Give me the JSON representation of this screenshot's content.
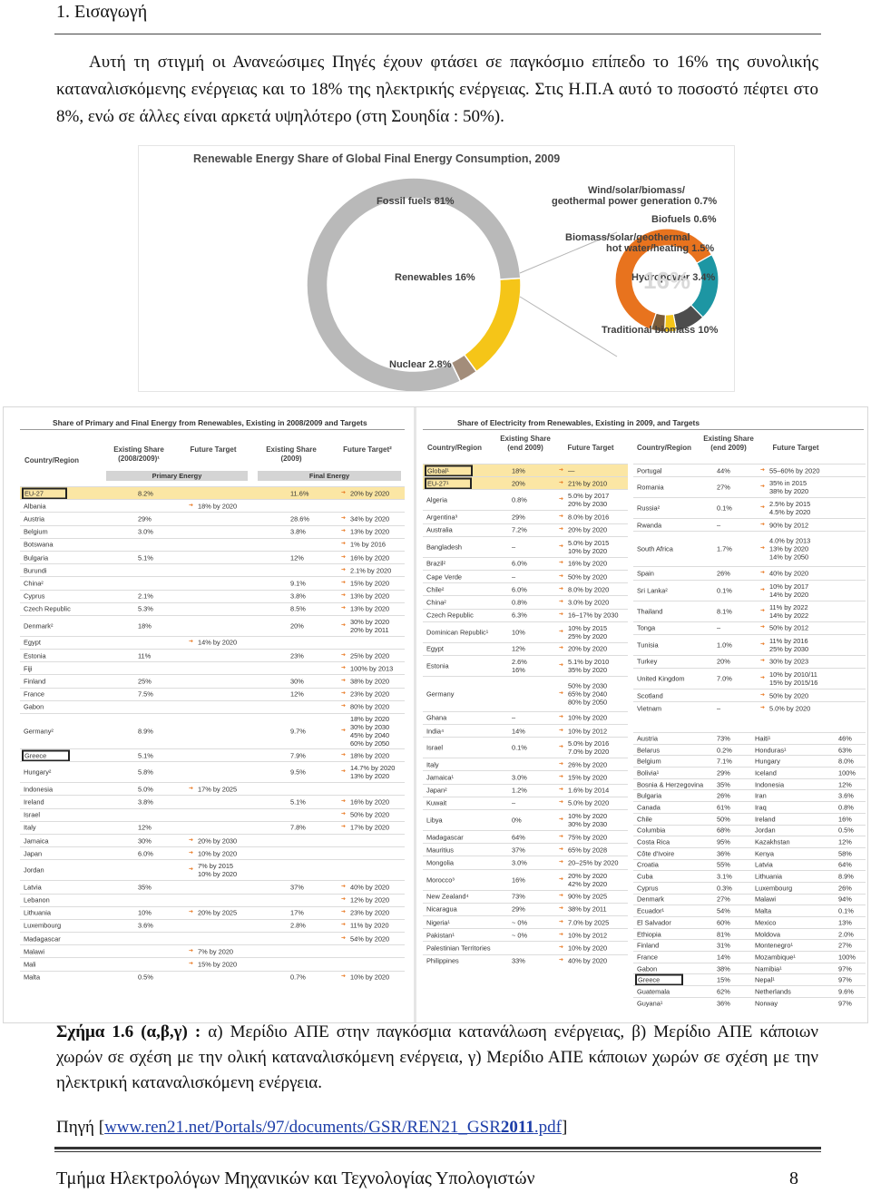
{
  "header": {
    "title": "1. Εισαγωγή"
  },
  "intro": "Αυτή τη στιγμή οι Ανανεώσιμες Πηγές έχουν φτάσει σε παγκόσμιο επίπεδο το 16% της συνολικής καταναλισκόμενης ενέργειας και το 18% της ηλεκτρικής ενέργειας. Στις Η.Π.Α αυτό το ποσοστό πέφτει στο 8%, ενώ σε άλλες είναι αρκετά υψηλότερο (στη Σουηδία : 50%).",
  "chart_data": {
    "type": "pie",
    "title": "Renewable Energy Share of Global Final Energy Consumption, 2009",
    "center_label": "16%",
    "outer_ring": [
      {
        "label": "Fossil fuels",
        "value": 81,
        "value_label": "81%",
        "color": "#b9b9b9"
      },
      {
        "label": "Renewables",
        "value": 16,
        "value_label": "16%",
        "color": "#f5c518"
      },
      {
        "label": "Nuclear",
        "value": 2.8,
        "value_label": "2.8%",
        "color": "#a38d7a"
      }
    ],
    "inner_ring": [
      {
        "label": "Traditional biomass",
        "value": 10,
        "value_label": "10%",
        "color": "#e8731e"
      },
      {
        "label": "Hydropower",
        "value": 3.4,
        "value_label": "3.4%",
        "color": "#1d96a3"
      },
      {
        "label": "Biomass/solar/geothermal hot water/heating",
        "value": 1.5,
        "value_label": "1.5%",
        "color": "#4d4d4d"
      },
      {
        "label": "Biofuels",
        "value": 0.6,
        "value_label": "0.6%",
        "color": "#f5c518"
      },
      {
        "label": "Wind/solar/biomass/ geothermal power generation",
        "value": 0.7,
        "value_label": "0.7%",
        "color": "#7a5c3a"
      }
    ]
  },
  "tables": {
    "primary": {
      "title": "Share of Primary and Final Energy from Renewables, Existing in 2008/2009 and Targets",
      "col_region": "Country/Region",
      "col_exist_primary": "Existing Share (2008/2009)¹",
      "col_future_primary": "Future Target",
      "col_exist_final": "Existing Share (2009)",
      "col_future_final": "Future Target²",
      "sub_primary": "Primary Energy",
      "sub_final": "Final Energy",
      "rows": [
        {
          "name": "EU-27",
          "p1": "8.2%",
          "p2": "",
          "f1": "11.6%",
          "f2": "20% by 2020",
          "hl": true,
          "boxed": true
        },
        {
          "name": "Albania",
          "p1": "",
          "p2": "18% by 2020",
          "f1": "",
          "f2": ""
        },
        {
          "name": "Austria",
          "p1": "29%",
          "p2": "",
          "f1": "28.6%",
          "f2": "34% by 2020"
        },
        {
          "name": "Belgium",
          "p1": "3.0%",
          "p2": "",
          "f1": "3.8%",
          "f2": "13% by 2020"
        },
        {
          "name": "Botswana",
          "p1": "",
          "p2": "",
          "f1": "",
          "f2": "1% by 2016"
        },
        {
          "name": "Bulgaria",
          "p1": "5.1%",
          "p2": "",
          "f1": "12%",
          "f2": "16% by 2020"
        },
        {
          "name": "Burundi",
          "p1": "",
          "p2": "",
          "f1": "",
          "f2": "2.1% by 2020"
        },
        {
          "name": "China²",
          "p1": "",
          "p2": "",
          "f1": "9.1%",
          "f2": "15% by 2020"
        },
        {
          "name": "Cyprus",
          "p1": "2.1%",
          "p2": "",
          "f1": "3.8%",
          "f2": "13% by 2020"
        },
        {
          "name": "Czech Republic",
          "p1": "5.3%",
          "p2": "",
          "f1": "8.5%",
          "f2": "13% by 2020"
        },
        {
          "name": "Denmark²",
          "p1": "18%",
          "p2": "",
          "f1": "20%",
          "f2": "30% by 2020 / 20% by 2011",
          "tall": true
        },
        {
          "name": "Egypt",
          "p1": "",
          "p2": "14% by 2020",
          "f1": "",
          "f2": ""
        },
        {
          "name": "Estonia",
          "p1": "11%",
          "p2": "",
          "f1": "23%",
          "f2": "25% by 2020"
        },
        {
          "name": "Fiji",
          "p1": "",
          "p2": "",
          "f1": "",
          "f2": "100% by 2013"
        },
        {
          "name": "Finland",
          "p1": "25%",
          "p2": "",
          "f1": "30%",
          "f2": "38% by 2020"
        },
        {
          "name": "France",
          "p1": "7.5%",
          "p2": "",
          "f1": "12%",
          "f2": "23% by 2020"
        },
        {
          "name": "Gabon",
          "p1": "",
          "p2": "",
          "f1": "",
          "f2": "80% by 2020"
        },
        {
          "name": "Germany²",
          "p1": "8.9%",
          "p2": "",
          "f1": "9.7%",
          "f2": "18% by 2020 / 30% by 2030 / 45% by 2040 / 60% by 2050",
          "xtall": true
        },
        {
          "name": "Greece",
          "p1": "5.1%",
          "p2": "",
          "f1": "7.9%",
          "f2": "18% by 2020",
          "boxed": true
        },
        {
          "name": "Hungary²",
          "p1": "5.8%",
          "p2": "",
          "f1": "9.5%",
          "f2": "14.7% by 2020 / 13% by 2020",
          "tall": true
        },
        {
          "name": "Indonesia",
          "p1": "5.0%",
          "p2": "17% by 2025",
          "f1": "",
          "f2": ""
        },
        {
          "name": "Ireland",
          "p1": "3.8%",
          "p2": "",
          "f1": "5.1%",
          "f2": "16% by 2020"
        },
        {
          "name": "Israel",
          "p1": "",
          "p2": "",
          "f1": "",
          "f2": "50% by 2020"
        },
        {
          "name": "Italy",
          "p1": "12%",
          "p2": "",
          "f1": "7.8%",
          "f2": "17% by 2020"
        },
        {
          "name": "Jamaica",
          "p1": "30%",
          "p2": "20% by 2030",
          "f1": "",
          "f2": ""
        },
        {
          "name": "Japan",
          "p1": "6.0%",
          "p2": "10% by 2020",
          "f1": "",
          "f2": ""
        },
        {
          "name": "Jordan",
          "p1": "",
          "p2": "7% by 2015 / 10% by 2020",
          "f1": "",
          "f2": "",
          "tall": true
        },
        {
          "name": "Latvia",
          "p1": "35%",
          "p2": "",
          "f1": "37%",
          "f2": "40% by 2020"
        },
        {
          "name": "Lebanon",
          "p1": "",
          "p2": "",
          "f1": "",
          "f2": "12% by 2020"
        },
        {
          "name": "Lithuania",
          "p1": "10%",
          "p2": "20% by 2025",
          "f1": "17%",
          "f2": "23% by 2020"
        },
        {
          "name": "Luxembourg",
          "p1": "3.6%",
          "p2": "",
          "f1": "2.8%",
          "f2": "11% by 2020"
        },
        {
          "name": "Madagascar",
          "p1": "",
          "p2": "",
          "f1": "",
          "f2": "54% by 2020"
        },
        {
          "name": "Malawi",
          "p1": "",
          "p2": "7% by 2020",
          "f1": "",
          "f2": ""
        },
        {
          "name": "Mali",
          "p1": "",
          "p2": "15% by 2020",
          "f1": "",
          "f2": ""
        },
        {
          "name": "Malta",
          "p1": "0.5%",
          "p2": "",
          "f1": "0.7%",
          "f2": "10% by 2020"
        }
      ]
    },
    "electricity": {
      "title": "Share of Electricity from Renewables, Existing in 2009, and Targets",
      "col_region": "Country/Region",
      "col_exist": "Existing Share (end 2009)",
      "col_future": "Future Target",
      "left_rows": [
        {
          "name": "Global¹",
          "e": "18%",
          "t": "—",
          "hl": true,
          "boxed": true
        },
        {
          "name": "EU-27¹",
          "e": "20%",
          "t": "21% by 2010",
          "hl": true,
          "boxed": true
        },
        {
          "name": "Algeria",
          "e": "0.8%",
          "t": "5.0% by 2017 / 20% by 2030",
          "tall": true
        },
        {
          "name": "Argentina³",
          "e": "29%",
          "t": "8.0% by 2016"
        },
        {
          "name": "Australia",
          "e": "7.2%",
          "t": "20% by 2020"
        },
        {
          "name": "Bangladesh",
          "e": "–",
          "t": "5.0% by 2015 / 10% by 2020",
          "tall": true
        },
        {
          "name": "Brazil²",
          "e": "6.0%",
          "t": "16% by 2020"
        },
        {
          "name": "Cape Verde",
          "e": "–",
          "t": "50% by 2020"
        },
        {
          "name": "Chile²",
          "e": "6.0%",
          "t": "8.0% by 2020"
        },
        {
          "name": "China²",
          "e": "0.8%",
          "t": "3.0% by 2020"
        },
        {
          "name": "Czech Republic",
          "e": "6.3%",
          "t": "16–17% by 2030"
        },
        {
          "name": "Dominican Republic¹",
          "e": "10%",
          "t": "10% by 2015 / 25% by 2020",
          "tall": true
        },
        {
          "name": "Egypt",
          "e": "12%",
          "t": "20% by 2020"
        },
        {
          "name": "Estonia",
          "e": "2.6% / 16%",
          "t": "5.1% by 2010 / 35% by 2020",
          "tall": true
        },
        {
          "name": "Germany",
          "e": "",
          "t": "50% by 2030 / 65% by 2040 / 80% by 2050",
          "xtall": true
        },
        {
          "name": "Ghana",
          "e": "–",
          "t": "10% by 2020"
        },
        {
          "name": "India⁴",
          "e": "14%",
          "t": "10% by 2012"
        },
        {
          "name": "Israel",
          "e": "0.1%",
          "t": "5.0% by 2016 / 7.0% by 2020",
          "tall": true
        },
        {
          "name": "Italy",
          "e": "",
          "t": "26% by 2020"
        },
        {
          "name": "Jamaica¹",
          "e": "3.0%",
          "t": "15% by 2020"
        },
        {
          "name": "Japan²",
          "e": "1.2%",
          "t": "1.6% by 2014"
        },
        {
          "name": "Kuwait",
          "e": "–",
          "t": "5.0% by 2020"
        },
        {
          "name": "Libya",
          "e": "0%",
          "t": "10% by 2020 / 30% by 2030",
          "tall": true
        },
        {
          "name": "Madagascar",
          "e": "64%",
          "t": "75% by 2020"
        },
        {
          "name": "Mauritius",
          "e": "37%",
          "t": "65% by 2028"
        },
        {
          "name": "Mongolia",
          "e": "3.0%",
          "t": "20–25% by 2020"
        },
        {
          "name": "Morocco³",
          "e": "16%",
          "t": "20% by 2020 / 42% by 2020",
          "tall": true
        },
        {
          "name": "New Zealand⁴",
          "e": "73%",
          "t": "90% by 2025"
        },
        {
          "name": "Nicaragua",
          "e": "29%",
          "t": "38% by 2011"
        },
        {
          "name": "Nigeria¹",
          "e": "~ 0%",
          "t": "7.0% by 2025"
        },
        {
          "name": "Pakistan¹",
          "e": "~ 0%",
          "t": "10% by 2012"
        },
        {
          "name": "Palestinian Territories",
          "e": "",
          "t": "10% by 2020"
        },
        {
          "name": "Philippines",
          "e": "33%",
          "t": "40% by 2020"
        }
      ],
      "right_rows": [
        {
          "name": "Portugal",
          "e": "44%",
          "t": "55–60% by 2020"
        },
        {
          "name": "Romania",
          "e": "27%",
          "t": "35% in 2015 / 38% by 2020",
          "tall": true
        },
        {
          "name": "Russia²",
          "e": "0.1%",
          "t": "2.5% by 2015 / 4.5% by 2020",
          "tall": true
        },
        {
          "name": "Rwanda",
          "e": "–",
          "t": "90% by 2012"
        },
        {
          "name": "South Africa",
          "e": "1.7%",
          "t": "4.0% by 2013 / 13% by 2020 / 14% by 2050",
          "xtall": true
        },
        {
          "name": "Spain",
          "e": "26%",
          "t": "40% by 2020"
        },
        {
          "name": "Sri Lanka²",
          "e": "0.1%",
          "t": "10% by 2017 / 14% by 2020",
          "tall": true
        },
        {
          "name": "Thailand",
          "e": "8.1%",
          "t": "11% by 2022 / 14% by 2022",
          "tall": true
        },
        {
          "name": "Tonga",
          "e": "–",
          "t": "50% by 2012"
        },
        {
          "name": "Tunisia",
          "e": "1.0%",
          "t": "11% by 2016 / 25% by 2030",
          "tall": true
        },
        {
          "name": "Turkey",
          "e": "20%",
          "t": "30% by 2023"
        },
        {
          "name": "United Kingdom",
          "e": "7.0%",
          "t": "10% by 2010/11 / 15% by 2015/16",
          "tall": true
        },
        {
          "name": "Scotland",
          "e": "",
          "t": "50% by 2020"
        },
        {
          "name": "Vietnam",
          "e": "–",
          "t": "5.0% by 2020"
        }
      ],
      "existing_pairs": [
        [
          "Austria",
          "73%",
          "Haiti¹",
          "46%"
        ],
        [
          "Belarus",
          "0.2%",
          "Honduras¹",
          "63%"
        ],
        [
          "Belgium",
          "7.1%",
          "Hungary",
          "8.0%"
        ],
        [
          "Bolivia¹",
          "29%",
          "Iceland",
          "100%"
        ],
        [
          "Bosnia & Herzegovina",
          "35%",
          "Indonesia",
          "12%"
        ],
        [
          "Bulgaria",
          "26%",
          "Iran",
          "3.6%"
        ],
        [
          "Canada",
          "61%",
          "Iraq",
          "0.8%"
        ],
        [
          "Chile",
          "50%",
          "Ireland",
          "16%"
        ],
        [
          "Columbia",
          "68%",
          "Jordan",
          "0.5%"
        ],
        [
          "Costa Rica",
          "95%",
          "Kazakhstan",
          "12%"
        ],
        [
          "Côte d'Ivoire",
          "36%",
          "Kenya",
          "58%"
        ],
        [
          "Croatia",
          "55%",
          "Latvia",
          "64%"
        ],
        [
          "Cuba",
          "3.1%",
          "Lithuania",
          "8.9%"
        ],
        [
          "Cyprus",
          "0.3%",
          "Luxembourg",
          "26%"
        ],
        [
          "Denmark",
          "27%",
          "Malawi",
          "94%"
        ],
        [
          "Ecuador¹",
          "54%",
          "Malta",
          "0.1%"
        ],
        [
          "El Salvador",
          "60%",
          "Mexico",
          "13%"
        ],
        [
          "Ethiopia",
          "81%",
          "Moldova",
          "2.0%"
        ],
        [
          "Finland",
          "31%",
          "Montenegro¹",
          "27%"
        ],
        [
          "France",
          "14%",
          "Mozambique¹",
          "100%"
        ],
        [
          "Gabon",
          "38%",
          "Namibia¹",
          "97%"
        ],
        [
          "Greece",
          "15%",
          "Nepal¹",
          "97%"
        ],
        [
          "Guatemala",
          "62%",
          "Netherlands",
          "9.6%"
        ],
        [
          "Guyana¹",
          "36%",
          "Norway",
          "97%"
        ]
      ]
    }
  },
  "caption": {
    "label": "Σχήμα 1.6 (α,β,γ) :",
    "text": " α) Μερίδιο ΑΠΕ στην παγκόσμια κατανάλωση ενέργειας, β) Μερίδιο ΑΠΕ κάποιων χωρών σε σχέση με την ολική καταναλισκόμενη ενέργεια, γ) Μερίδιο ΑΠΕ κάποιων χωρών σε σχέση με την ηλεκτρική καταναλισκόμενη ενέργεια."
  },
  "source": {
    "label": "Πηγή [",
    "link_pre": "www.ren21.net/Portals/97/documents/GSR/REN21_GSR",
    "link_bold": "2011",
    "link_post": ".pdf",
    "close": "]"
  },
  "footer": {
    "text": "Τμήμα Ηλεκτρολόγων Μηχανικών και Τεχνολογίας Υπολογιστών",
    "page": "8"
  }
}
